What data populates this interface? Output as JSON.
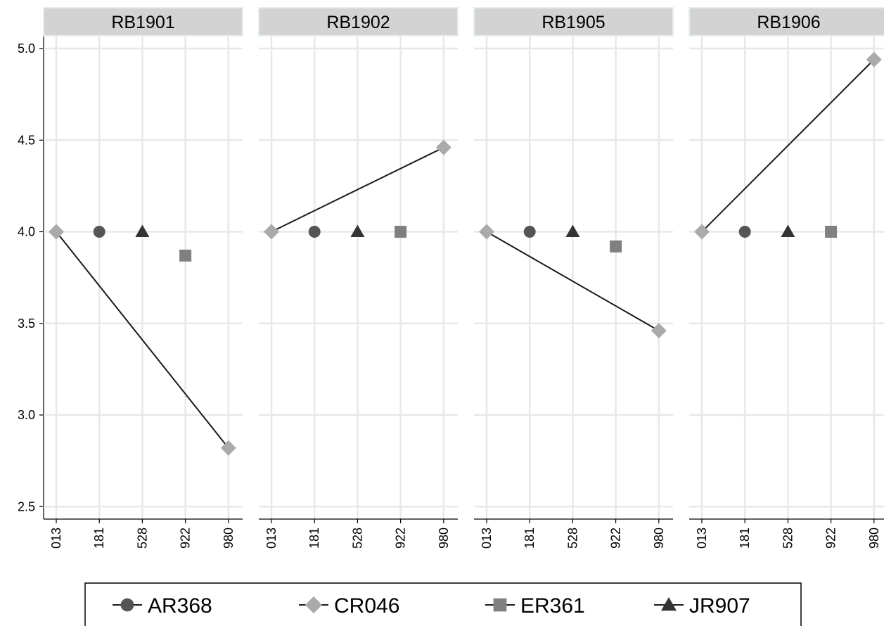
{
  "chart_data": {
    "type": "scatter",
    "y_axis": {
      "range": [
        2.45,
        5.05
      ],
      "ticks": [
        "2.5",
        "3.0",
        "3.5",
        "4.0",
        "4.5",
        "5.0"
      ],
      "grid": true
    },
    "x_categories": [
      "013",
      "181",
      "528",
      "922",
      "980"
    ],
    "panels": [
      {
        "title": "RB1901",
        "points": [
          {
            "series": "CR046",
            "x": "013",
            "y": 4.0
          },
          {
            "series": "AR368",
            "x": "181",
            "y": 4.0
          },
          {
            "series": "JR907",
            "x": "528",
            "y": 4.0
          },
          {
            "series": "ER361",
            "x": "922",
            "y": 3.87
          },
          {
            "series": "CR046",
            "x": "980",
            "y": 2.82
          }
        ],
        "line": {
          "series": "CR046",
          "from": [
            "013",
            4.0
          ],
          "to": [
            "980",
            2.82
          ]
        }
      },
      {
        "title": "RB1902",
        "points": [
          {
            "series": "CR046",
            "x": "013",
            "y": 4.0
          },
          {
            "series": "AR368",
            "x": "181",
            "y": 4.0
          },
          {
            "series": "JR907",
            "x": "528",
            "y": 4.0
          },
          {
            "series": "ER361",
            "x": "922",
            "y": 4.0
          },
          {
            "series": "CR046",
            "x": "980",
            "y": 4.46
          }
        ],
        "line": {
          "series": "CR046",
          "from": [
            "013",
            4.0
          ],
          "to": [
            "980",
            4.46
          ]
        }
      },
      {
        "title": "RB1905",
        "points": [
          {
            "series": "CR046",
            "x": "013",
            "y": 4.0
          },
          {
            "series": "AR368",
            "x": "181",
            "y": 4.0
          },
          {
            "series": "JR907",
            "x": "528",
            "y": 4.0
          },
          {
            "series": "ER361",
            "x": "922",
            "y": 3.92
          },
          {
            "series": "CR046",
            "x": "980",
            "y": 3.46
          }
        ],
        "line": {
          "series": "CR046",
          "from": [
            "013",
            4.0
          ],
          "to": [
            "980",
            3.46
          ]
        }
      },
      {
        "title": "RB1906",
        "points": [
          {
            "series": "CR046",
            "x": "013",
            "y": 4.0
          },
          {
            "series": "AR368",
            "x": "181",
            "y": 4.0
          },
          {
            "series": "JR907",
            "x": "528",
            "y": 4.0
          },
          {
            "series": "ER361",
            "x": "922",
            "y": 4.0
          },
          {
            "series": "CR046",
            "x": "980",
            "y": 4.94
          }
        ],
        "line": {
          "series": "CR046",
          "from": [
            "013",
            4.0
          ],
          "to": [
            "980",
            4.94
          ]
        }
      }
    ],
    "legend": {
      "placement": "bottom",
      "entries": [
        {
          "name": "AR368",
          "marker": "circle",
          "color": "#555555"
        },
        {
          "name": "CR046",
          "marker": "diamond",
          "color": "#aaaaaa"
        },
        {
          "name": "ER361",
          "marker": "square",
          "color": "#808080"
        },
        {
          "name": "JR907",
          "marker": "triangle",
          "color": "#333333"
        }
      ]
    },
    "colors": {
      "strip_fill": "#d3d3d3",
      "grid": "#e8e8e8",
      "line": "#1a1a1a"
    }
  }
}
